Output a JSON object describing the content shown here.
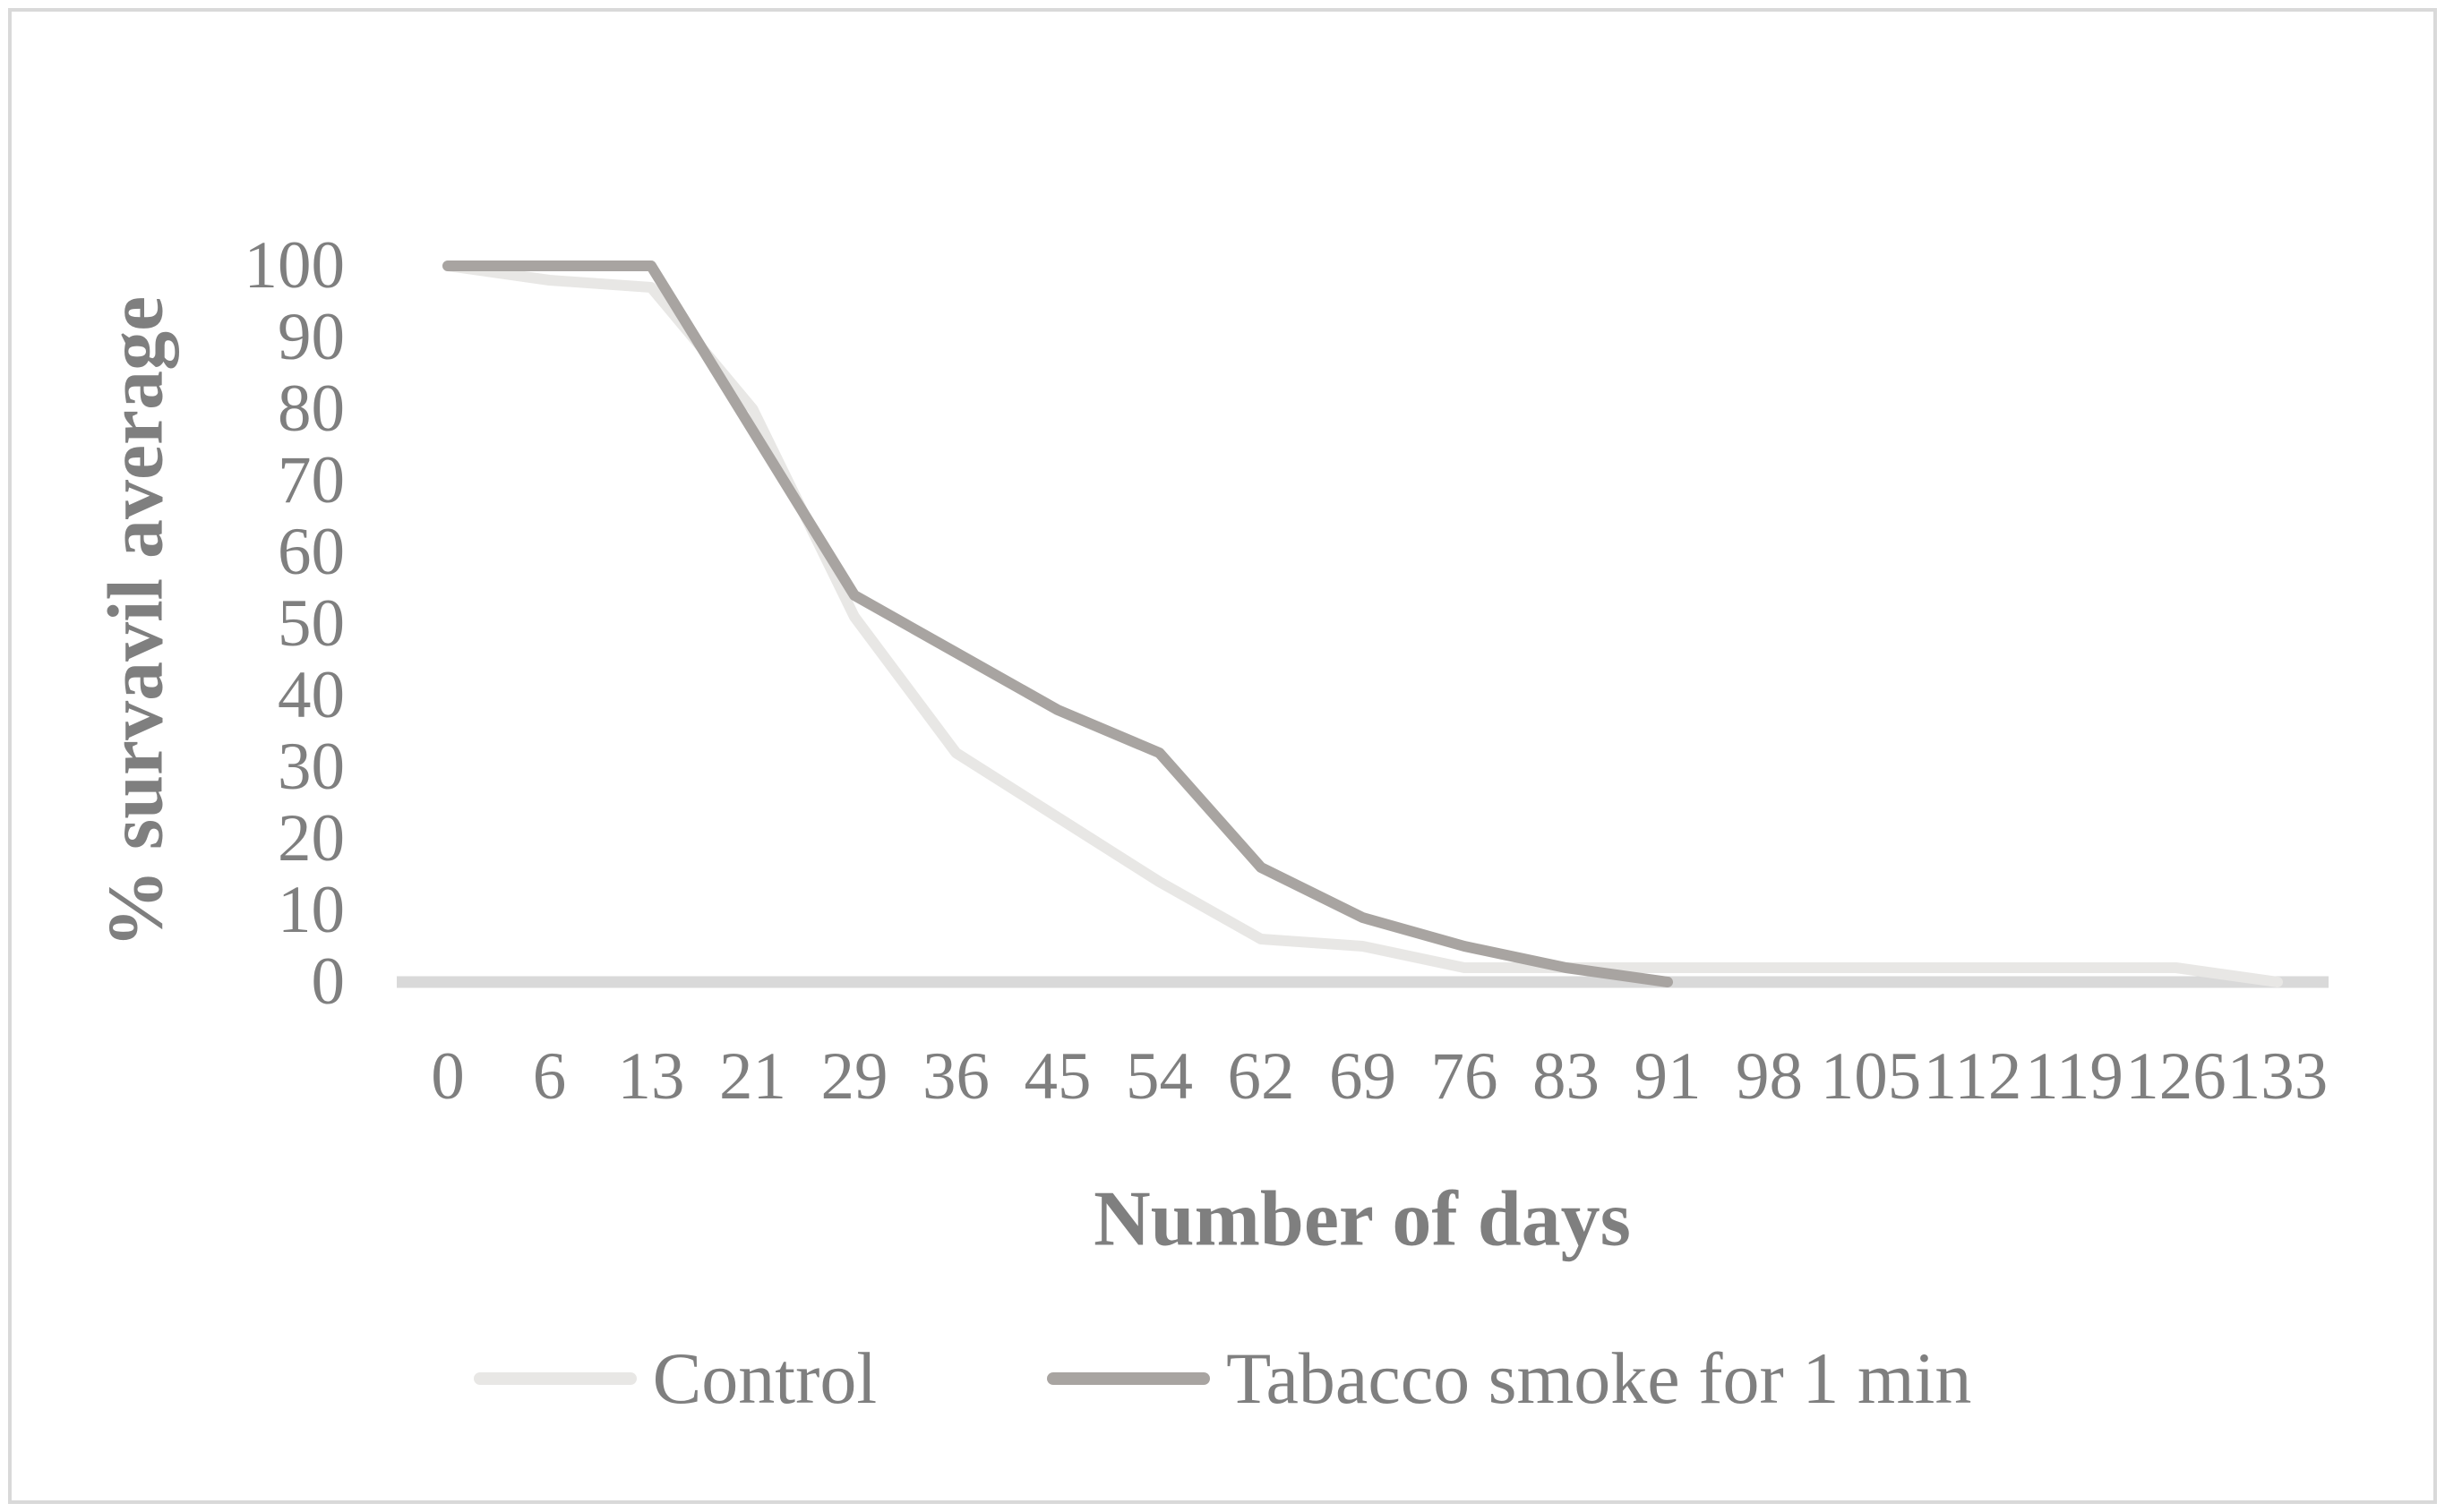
{
  "figure": {
    "y_axis_title": "% survavil average",
    "x_axis_title": "Number of days"
  },
  "chart_data": {
    "type": "line",
    "title": "",
    "xlabel": "Number of days",
    "ylabel": "% survavil average",
    "categories": [
      0,
      6,
      13,
      21,
      29,
      36,
      45,
      54,
      62,
      69,
      76,
      83,
      91,
      98,
      105,
      112,
      119,
      126,
      133
    ],
    "y_ticks": [
      100,
      90,
      80,
      70,
      60,
      50,
      40,
      30,
      20,
      10,
      0
    ],
    "ylim": [
      0,
      100
    ],
    "grid": false,
    "legend_position": "bottom",
    "series": [
      {
        "name": "Control",
        "color": "#e8e7e5",
        "values": [
          100,
          98,
          97,
          80,
          51,
          32,
          23,
          14,
          6,
          5,
          2,
          2,
          2,
          2,
          2,
          2,
          2,
          2,
          0
        ]
      },
      {
        "name": "Tabacco smoke for 1 min",
        "color": "#a8a4a1",
        "values": [
          100,
          100,
          100,
          77,
          54,
          46,
          38,
          32,
          16,
          9,
          5,
          2,
          0,
          null,
          null,
          null,
          null,
          null,
          null
        ]
      }
    ]
  },
  "colors": {
    "baseline": "#d9d9d9",
    "text": "#7f7f7f",
    "frame": "#d9d9d9",
    "background": "#ffffff"
  }
}
